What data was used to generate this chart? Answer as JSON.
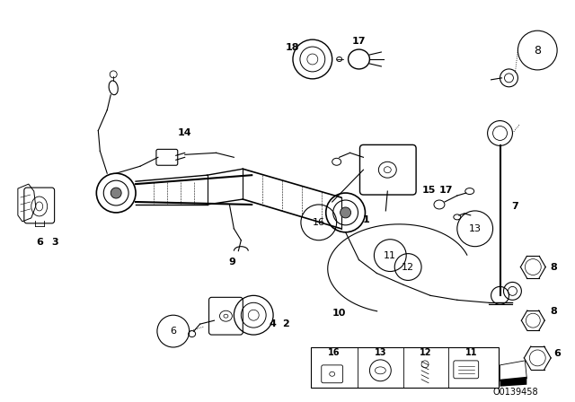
{
  "bg_color": "#ffffff",
  "line_color": "#000000",
  "text_color": "#000000",
  "footer": "O0139458",
  "figsize": [
    6.4,
    4.48
  ],
  "dpi": 100
}
